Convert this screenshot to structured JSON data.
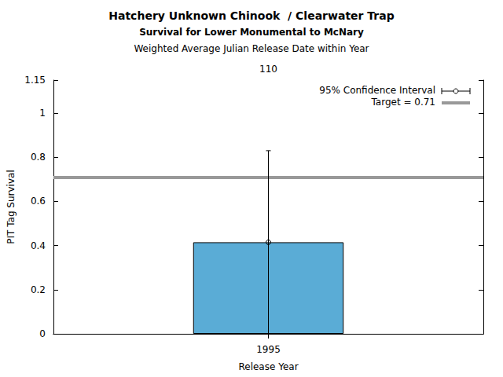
{
  "chart_data": {
    "type": "bar",
    "title": "Hatchery Unknown Chinook  / Clearwater Trap",
    "subtitle": "Survival for Lower Monumental to McNary",
    "subtitle2": "Weighted Average Julian Release Date within Year",
    "top_categories": [
      "110"
    ],
    "x_label": "Release Year",
    "y_label": "PIT Tag Survival",
    "categories": [
      "1995"
    ],
    "values": [
      0.415
    ],
    "ci_lower": [
      0
    ],
    "ci_upper": [
      0.83
    ],
    "ci_label": "95% Confidence Interval",
    "target": 0.71,
    "target_label": "Target = 0.71",
    "color": "#5aacd6",
    "ylim": [
      0,
      1.15
    ],
    "yticks": [
      0,
      0.2,
      0.4,
      0.6,
      0.8,
      1
    ],
    "grid": false
  }
}
